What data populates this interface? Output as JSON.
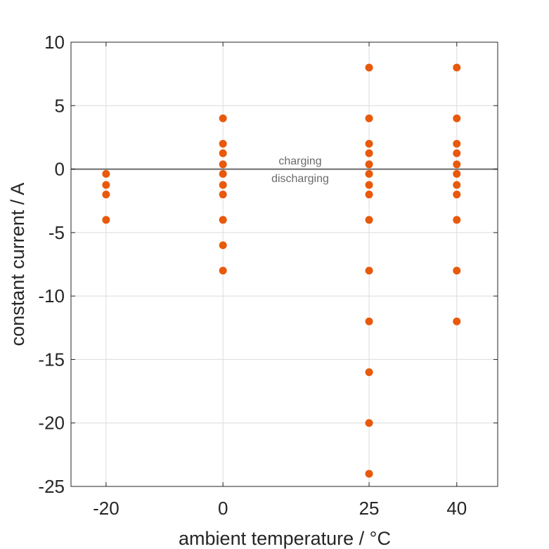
{
  "chart_data": {
    "type": "scatter",
    "xlabel": "ambient temperature / °C",
    "ylabel": "constant current / A",
    "xlim": [
      -26,
      47
    ],
    "ylim": [
      -25,
      10
    ],
    "xticks": [
      -20,
      0,
      25,
      40
    ],
    "yticks": [
      10,
      5,
      0,
      -5,
      -10,
      -15,
      -20,
      -25
    ],
    "grid": true,
    "marker_color": "#e8590c",
    "zero_line_color": "#6b6b6b",
    "annotations": [
      "charging",
      "discharging"
    ],
    "series": [
      {
        "points": [
          {
            "x": -20,
            "y": -0.375
          },
          {
            "x": -20,
            "y": -1.25
          },
          {
            "x": -20,
            "y": -2
          },
          {
            "x": -20,
            "y": -4
          },
          {
            "x": 0,
            "y": 4
          },
          {
            "x": 0,
            "y": 2
          },
          {
            "x": 0,
            "y": 1.25
          },
          {
            "x": 0,
            "y": 0.375
          },
          {
            "x": 0,
            "y": -0.375
          },
          {
            "x": 0,
            "y": -1.25
          },
          {
            "x": 0,
            "y": -2
          },
          {
            "x": 0,
            "y": -4
          },
          {
            "x": 0,
            "y": -6
          },
          {
            "x": 0,
            "y": -8
          },
          {
            "x": 25,
            "y": 8
          },
          {
            "x": 25,
            "y": 4
          },
          {
            "x": 25,
            "y": 2
          },
          {
            "x": 25,
            "y": 1.25
          },
          {
            "x": 25,
            "y": 0.375
          },
          {
            "x": 25,
            "y": -0.375
          },
          {
            "x": 25,
            "y": -1.25
          },
          {
            "x": 25,
            "y": -2
          },
          {
            "x": 25,
            "y": -4
          },
          {
            "x": 25,
            "y": -8
          },
          {
            "x": 25,
            "y": -12
          },
          {
            "x": 25,
            "y": -16
          },
          {
            "x": 25,
            "y": -20
          },
          {
            "x": 25,
            "y": -24
          },
          {
            "x": 40,
            "y": 8
          },
          {
            "x": 40,
            "y": 4
          },
          {
            "x": 40,
            "y": 2
          },
          {
            "x": 40,
            "y": 1.25
          },
          {
            "x": 40,
            "y": 0.375
          },
          {
            "x": 40,
            "y": -0.375
          },
          {
            "x": 40,
            "y": -1.25
          },
          {
            "x": 40,
            "y": -2
          },
          {
            "x": 40,
            "y": -4
          },
          {
            "x": 40,
            "y": -8
          },
          {
            "x": 40,
            "y": -12
          }
        ]
      }
    ]
  }
}
